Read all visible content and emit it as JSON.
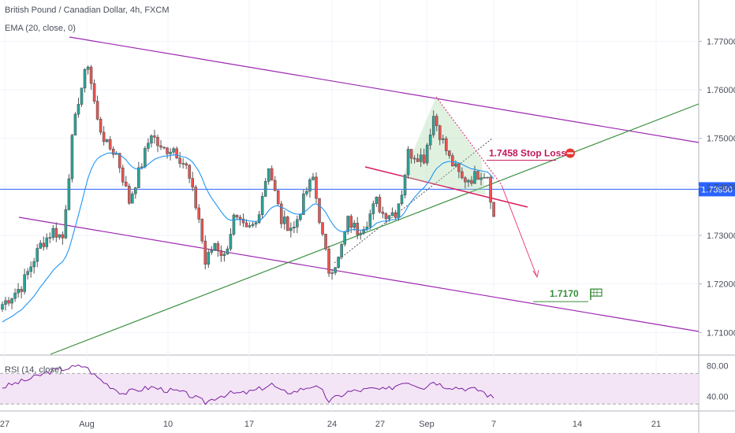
{
  "header": {
    "title": "British Pound / Canadian Dollar, 4h, FXCM",
    "indicator": "EMA (20, close, 0)",
    "rsi_label": "RSI (14, close)"
  },
  "colors": {
    "up": "#26a69a",
    "down": "#ef5350",
    "candle": "#555555",
    "ema": "#2196f3",
    "channel": "#9c27b0",
    "trend": "#388e3c",
    "support": "#2962ff",
    "neck": "#d81b60",
    "stop": "#c2185b",
    "target": "#388e3c",
    "rsi_line": "#7b1fa2",
    "rsi_fill": "#f3e5f5"
  },
  "annotations": {
    "stop_loss_text": "1.7458 Stop Loss",
    "target_text": "1.7170",
    "current_price_text": "1.73950"
  },
  "chart_data": [
    {
      "type": "candlestick",
      "title": "British Pound / Canadian Dollar, 4h, FXCM",
      "series_name": "EMA (20, close, 0)",
      "ylim": [
        1.7055,
        1.7785
      ],
      "y_ticks": [
        "1.77000",
        "1.76000",
        "1.75000",
        "1.74000",
        "1.73000",
        "1.72000",
        "1.71000"
      ],
      "y_tick_values": [
        1.77,
        1.76,
        1.75,
        1.74,
        1.73,
        1.72,
        1.71
      ],
      "x_ticks": [
        "27",
        "Aug",
        "10",
        "17",
        "24",
        "27",
        "Sep",
        "7",
        "14",
        "21"
      ],
      "price_waypoints": [
        [
          0,
          1.7158
        ],
        [
          6,
          1.7195
        ],
        [
          12,
          1.728
        ],
        [
          16,
          1.731
        ],
        [
          19,
          1.7295
        ],
        [
          22,
          1.7495
        ],
        [
          24,
          1.758
        ],
        [
          27,
          1.7655
        ],
        [
          30,
          1.7535
        ],
        [
          33,
          1.7485
        ],
        [
          36,
          1.7468
        ],
        [
          40,
          1.737
        ],
        [
          44,
          1.7448
        ],
        [
          47,
          1.7512
        ],
        [
          50,
          1.7475
        ],
        [
          54,
          1.748
        ],
        [
          58,
          1.744
        ],
        [
          62,
          1.7335
        ],
        [
          64,
          1.7242
        ],
        [
          67,
          1.7285
        ],
        [
          70,
          1.7255
        ],
        [
          73,
          1.7335
        ],
        [
          77,
          1.7308
        ],
        [
          80,
          1.7325
        ],
        [
          84,
          1.7445
        ],
        [
          88,
          1.733
        ],
        [
          92,
          1.7315
        ],
        [
          96,
          1.7392
        ],
        [
          98,
          1.7418
        ],
        [
          101,
          1.7295
        ],
        [
          103,
          1.7228
        ],
        [
          106,
          1.725
        ],
        [
          109,
          1.733
        ],
        [
          112,
          1.731
        ],
        [
          115,
          1.733
        ],
        [
          118,
          1.737
        ],
        [
          120,
          1.7345
        ],
        [
          124,
          1.7348
        ],
        [
          126,
          1.739
        ],
        [
          128,
          1.747
        ],
        [
          131,
          1.7465
        ],
        [
          133,
          1.746
        ],
        [
          136,
          1.7546
        ],
        [
          138,
          1.751
        ],
        [
          141,
          1.7458
        ],
        [
          145,
          1.7415
        ],
        [
          148,
          1.7418
        ],
        [
          151,
          1.743
        ],
        [
          153,
          1.7425
        ],
        [
          155,
          1.7336
        ]
      ],
      "candle_count": 156,
      "last_price": 1.7339,
      "support_level": 1.7395,
      "stop_loss": 1.7458,
      "target": 1.717
    },
    {
      "type": "line",
      "title": "RSI (14, close)",
      "ylim": [
        23,
        90
      ],
      "y_ticks": [
        "80.00",
        "40.00"
      ],
      "y_tick_values": [
        80,
        40
      ],
      "band": [
        30,
        70
      ],
      "rsi_waypoints": [
        [
          0,
          52
        ],
        [
          8,
          62
        ],
        [
          16,
          74
        ],
        [
          22,
          78
        ],
        [
          26,
          80
        ],
        [
          29,
          68
        ],
        [
          33,
          56
        ],
        [
          38,
          44
        ],
        [
          42,
          48
        ],
        [
          47,
          52
        ],
        [
          52,
          48
        ],
        [
          56,
          46
        ],
        [
          60,
          40
        ],
        [
          64,
          32
        ],
        [
          68,
          40
        ],
        [
          72,
          44
        ],
        [
          76,
          44
        ],
        [
          80,
          48
        ],
        [
          85,
          56
        ],
        [
          88,
          46
        ],
        [
          92,
          46
        ],
        [
          96,
          52
        ],
        [
          98,
          54
        ],
        [
          101,
          46
        ],
        [
          103,
          34
        ],
        [
          106,
          40
        ],
        [
          109,
          46
        ],
        [
          113,
          48
        ],
        [
          117,
          50
        ],
        [
          121,
          48
        ],
        [
          124,
          54
        ],
        [
          127,
          60
        ],
        [
          130,
          56
        ],
        [
          133,
          52
        ],
        [
          136,
          60
        ],
        [
          139,
          54
        ],
        [
          143,
          52
        ],
        [
          147,
          50
        ],
        [
          151,
          48
        ],
        [
          153,
          42
        ],
        [
          155,
          38
        ]
      ]
    }
  ]
}
